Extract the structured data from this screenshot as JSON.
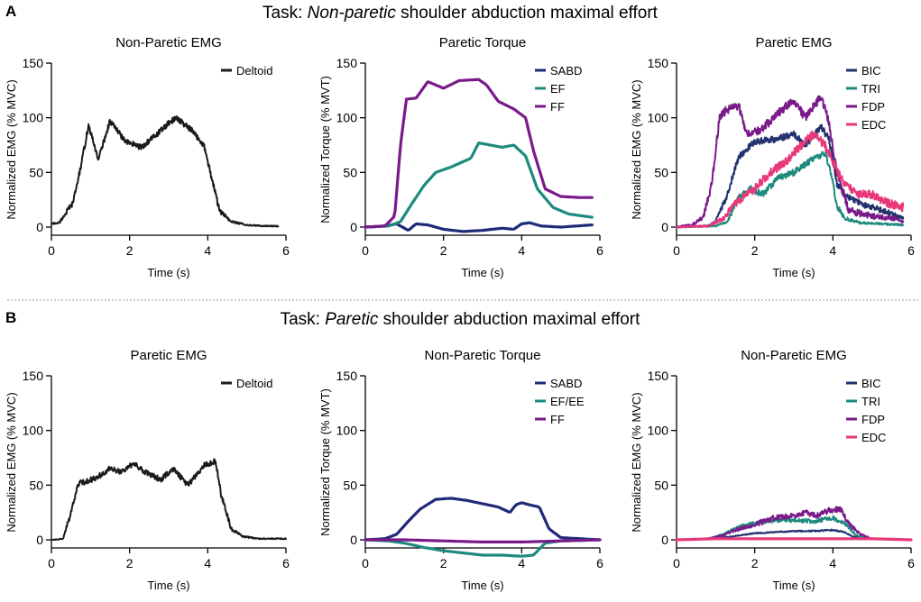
{
  "figure": {
    "rows": [
      {
        "letter": "A",
        "title_prefix": "Task: ",
        "title_emph": "Non-paretic",
        "title_suffix": " shoulder abduction maximal effort"
      },
      {
        "letter": "B",
        "title_prefix": "Task: ",
        "title_emph": "Paretic",
        "title_suffix": " shoulder abduction maximal effort"
      }
    ]
  },
  "colors": {
    "black": "#1a1a1a",
    "navy": "#1f2a78",
    "teal": "#1e8a7e",
    "purple": "#7a1a8a",
    "pink": "#e8387a",
    "bic": "#22336e"
  },
  "chart_data": [
    {
      "type": "line",
      "title": "Non-Paretic EMG",
      "xlabel": "Time (s)",
      "ylabel": "Normalized EMG (% MVC)",
      "xlim": [
        0,
        6
      ],
      "ylim": [
        0,
        150
      ],
      "xticks": [
        "0",
        "2",
        "4",
        "6"
      ],
      "yticks": [
        "0",
        "50",
        "100",
        "150"
      ],
      "legend": "top-right",
      "series": [
        {
          "name": "Deltoid",
          "color": "#1a1a1a",
          "noise": 2.5,
          "x": [
            0,
            0.2,
            0.35,
            0.55,
            0.75,
            0.95,
            1.2,
            1.5,
            1.9,
            2.3,
            2.7,
            3.0,
            3.2,
            3.6,
            3.9,
            4.1,
            4.3,
            4.6,
            5.0,
            5.4,
            5.8
          ],
          "y": [
            3,
            4,
            12,
            22,
            55,
            93,
            62,
            97,
            78,
            73,
            85,
            95,
            100,
            88,
            75,
            45,
            15,
            5,
            2,
            1,
            1
          ]
        }
      ]
    },
    {
      "type": "line",
      "title": "Paretic Torque",
      "xlabel": "Time (s)",
      "ylabel": "Normalized Torque (% MVT)",
      "xlim": [
        0,
        6
      ],
      "ylim": [
        0,
        150
      ],
      "xticks": [
        "0",
        "2",
        "4",
        "6"
      ],
      "yticks": [
        "0",
        "50",
        "100",
        "150"
      ],
      "legend": "top-right",
      "series": [
        {
          "name": "SABD",
          "color": "#1f2a78",
          "noise": 0,
          "x": [
            0,
            0.5,
            0.8,
            1.1,
            1.3,
            1.6,
            2.0,
            2.5,
            3.0,
            3.5,
            3.8,
            4.0,
            4.2,
            4.5,
            5.0,
            5.8
          ],
          "y": [
            0,
            1,
            3,
            -3,
            3,
            2,
            -2,
            -4,
            -3,
            -1,
            -2,
            3,
            4,
            1,
            0,
            2
          ]
        },
        {
          "name": "EF",
          "color": "#1e8a7e",
          "noise": 0,
          "x": [
            0,
            0.6,
            0.9,
            1.2,
            1.5,
            1.8,
            2.2,
            2.7,
            2.9,
            3.2,
            3.5,
            3.8,
            4.1,
            4.4,
            4.8,
            5.2,
            5.8
          ],
          "y": [
            0,
            1,
            5,
            22,
            38,
            50,
            55,
            63,
            77,
            75,
            73,
            75,
            65,
            35,
            18,
            12,
            9
          ]
        },
        {
          "name": "FF",
          "color": "#7a1a8a",
          "noise": 0,
          "x": [
            0,
            0.5,
            0.75,
            0.9,
            1.05,
            1.3,
            1.6,
            2.0,
            2.4,
            2.9,
            3.1,
            3.4,
            3.8,
            4.1,
            4.3,
            4.6,
            5.0,
            5.5,
            5.8
          ],
          "y": [
            0,
            1,
            10,
            75,
            117,
            118,
            133,
            127,
            134,
            135,
            130,
            115,
            108,
            100,
            70,
            35,
            28,
            27,
            27
          ]
        }
      ]
    },
    {
      "type": "line",
      "title": "Paretic EMG",
      "xlabel": "Time (s)",
      "ylabel": "Normalized EMG (% MVC)",
      "xlim": [
        0,
        6
      ],
      "ylim": [
        0,
        150
      ],
      "xticks": [
        "0",
        "2",
        "4",
        "6"
      ],
      "yticks": [
        "0",
        "50",
        "100",
        "150"
      ],
      "legend": "top-right",
      "series": [
        {
          "name": "BIC",
          "color": "#22336e",
          "noise": 3,
          "x": [
            0,
            0.8,
            1.0,
            1.3,
            1.6,
            2.0,
            2.5,
            3.0,
            3.3,
            3.7,
            3.9,
            4.1,
            4.3,
            4.8,
            5.3,
            5.8
          ],
          "y": [
            0,
            1,
            5,
            30,
            65,
            78,
            80,
            85,
            75,
            92,
            80,
            40,
            30,
            20,
            15,
            8
          ]
        },
        {
          "name": "TRI",
          "color": "#1e8a7e",
          "noise": 3,
          "x": [
            0,
            1.0,
            1.3,
            1.6,
            1.9,
            2.2,
            2.6,
            3.0,
            3.4,
            3.8,
            3.95,
            4.1,
            4.3,
            4.7,
            5.2,
            5.8
          ],
          "y": [
            0,
            1,
            5,
            28,
            35,
            30,
            45,
            50,
            60,
            68,
            50,
            20,
            8,
            4,
            3,
            2
          ]
        },
        {
          "name": "FDP",
          "color": "#7a1a8a",
          "noise": 4,
          "x": [
            0,
            0.4,
            0.7,
            0.9,
            1.1,
            1.3,
            1.6,
            1.8,
            2.2,
            2.6,
            3.0,
            3.3,
            3.7,
            3.9,
            4.1,
            4.4,
            5.0,
            5.5,
            5.8
          ],
          "y": [
            0,
            2,
            10,
            40,
            100,
            108,
            110,
            85,
            90,
            105,
            115,
            100,
            120,
            95,
            50,
            15,
            10,
            8,
            5
          ]
        },
        {
          "name": "EDC",
          "color": "#e8387a",
          "noise": 4,
          "x": [
            0,
            0.8,
            1.2,
            1.6,
            2.0,
            2.4,
            2.8,
            3.2,
            3.5,
            3.8,
            4.0,
            4.2,
            4.6,
            5.0,
            5.4,
            5.8
          ],
          "y": [
            0,
            1,
            8,
            25,
            35,
            50,
            60,
            75,
            85,
            75,
            60,
            45,
            30,
            30,
            22,
            18
          ]
        }
      ]
    },
    {
      "type": "line",
      "title": "Paretic EMG",
      "xlabel": "Time (s)",
      "ylabel": "Normalized EMG (% MVC)",
      "xlim": [
        0,
        6
      ],
      "ylim": [
        0,
        150
      ],
      "xticks": [
        "0",
        "2",
        "4",
        "6"
      ],
      "yticks": [
        "0",
        "50",
        "100",
        "150"
      ],
      "legend": "top-right",
      "series": [
        {
          "name": "Deltoid",
          "color": "#1a1a1a",
          "noise": 2.5,
          "x": [
            0,
            0.3,
            0.5,
            0.7,
            0.9,
            1.2,
            1.5,
            1.8,
            2.1,
            2.4,
            2.8,
            3.1,
            3.5,
            3.9,
            4.2,
            4.35,
            4.6,
            4.9,
            5.3,
            5.8,
            6.0
          ],
          "y": [
            0,
            1,
            25,
            52,
            53,
            58,
            65,
            62,
            70,
            62,
            55,
            65,
            50,
            68,
            72,
            40,
            10,
            3,
            1,
            1,
            1
          ]
        }
      ]
    },
    {
      "type": "line",
      "title": "Non-Paretic Torque",
      "xlabel": "Time (s)",
      "ylabel": "Normalized Torque (% MVT)",
      "xlim": [
        0,
        6
      ],
      "ylim": [
        0,
        150
      ],
      "xticks": [
        "0",
        "2",
        "4",
        "6"
      ],
      "yticks": [
        "0",
        "50",
        "100",
        "150"
      ],
      "legend": "top-right",
      "series": [
        {
          "name": "SABD",
          "color": "#1f2a78",
          "noise": 0,
          "x": [
            0,
            0.5,
            0.8,
            1.1,
            1.4,
            1.8,
            2.2,
            2.6,
            3.0,
            3.4,
            3.7,
            3.85,
            4.0,
            4.2,
            4.45,
            4.7,
            5.0,
            5.5,
            6.0
          ],
          "y": [
            0,
            1,
            5,
            17,
            28,
            37,
            38,
            36,
            33,
            30,
            25,
            32,
            34,
            32,
            30,
            10,
            2,
            1,
            0
          ]
        },
        {
          "name": "EF/EE",
          "color": "#1e8a7e",
          "noise": 0,
          "x": [
            0,
            0.6,
            1.0,
            1.5,
            2.0,
            2.5,
            3.0,
            3.5,
            4.0,
            4.3,
            4.6,
            5.0,
            6.0
          ],
          "y": [
            0,
            -1,
            -3,
            -7,
            -10,
            -12,
            -14,
            -14,
            -15,
            -14,
            -3,
            -1,
            0
          ]
        },
        {
          "name": "FF",
          "color": "#7a1a8a",
          "noise": 0,
          "x": [
            0,
            1.0,
            2.0,
            3.0,
            4.0,
            5.0,
            6.0
          ],
          "y": [
            0,
            0,
            -1,
            -2,
            -2,
            -1,
            0
          ]
        }
      ]
    },
    {
      "type": "line",
      "title": "Non-Paretic EMG",
      "xlabel": "Time (s)",
      "ylabel": "Normalized EMG (% MVC)",
      "xlim": [
        0,
        6
      ],
      "ylim": [
        0,
        150
      ],
      "xticks": [
        "0",
        "2",
        "4",
        "6"
      ],
      "yticks": [
        "0",
        "50",
        "100",
        "150"
      ],
      "legend": "top-right",
      "series": [
        {
          "name": "BIC",
          "color": "#22336e",
          "noise": 1,
          "x": [
            0,
            0.8,
            1.2,
            1.6,
            2.0,
            2.5,
            3.0,
            3.5,
            4.0,
            4.3,
            4.5,
            5.0,
            6.0
          ],
          "y": [
            0,
            1,
            2,
            4,
            6,
            7,
            8,
            8,
            9,
            7,
            3,
            1,
            0
          ]
        },
        {
          "name": "TRI",
          "color": "#1e8a7e",
          "noise": 2,
          "x": [
            0,
            0.8,
            1.2,
            1.6,
            2.0,
            2.5,
            3.0,
            3.5,
            4.0,
            4.3,
            4.6,
            5.0,
            6.0
          ],
          "y": [
            0,
            1,
            5,
            12,
            15,
            18,
            18,
            17,
            20,
            15,
            4,
            1,
            0
          ]
        },
        {
          "name": "FDP",
          "color": "#7a1a8a",
          "noise": 2.5,
          "x": [
            0,
            0.8,
            1.2,
            1.6,
            2.0,
            2.5,
            3.0,
            3.3,
            3.6,
            3.9,
            4.2,
            4.4,
            4.7,
            5.0,
            6.0
          ],
          "y": [
            0,
            1,
            4,
            10,
            14,
            20,
            22,
            25,
            22,
            27,
            28,
            15,
            5,
            1,
            0
          ]
        },
        {
          "name": "EDC",
          "color": "#e8387a",
          "noise": 0,
          "x": [
            0,
            1.0,
            2.0,
            3.0,
            4.0,
            5.0,
            6.0
          ],
          "y": [
            0,
            1,
            1,
            1,
            1,
            1,
            0
          ]
        }
      ]
    }
  ]
}
